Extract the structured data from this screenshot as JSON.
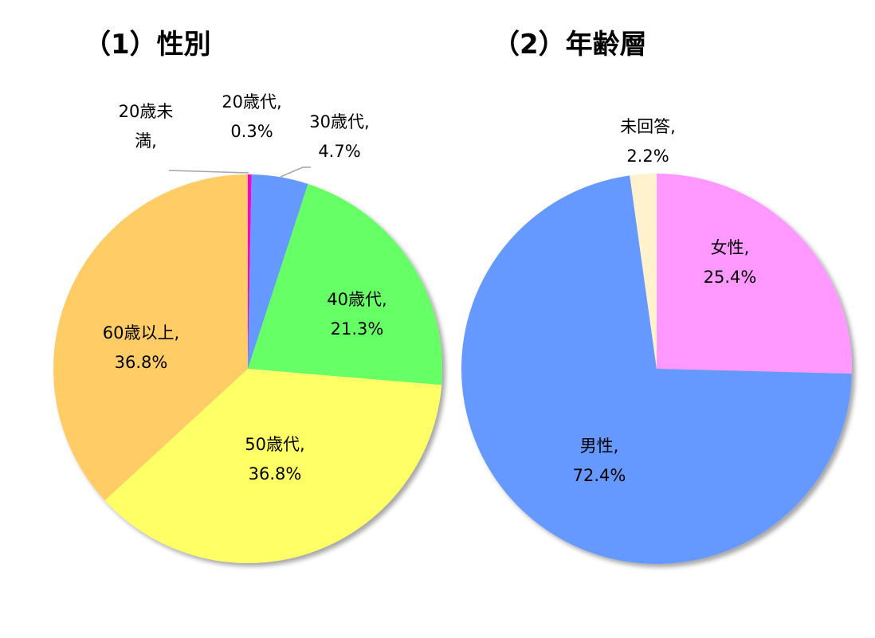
{
  "chart_data": [
    {
      "type": "pie",
      "title": "（1）性別",
      "slices": [
        {
          "name": "20歳未満",
          "value": 0.0,
          "color": "#BDBDBD",
          "label": [
            "20歳未",
            "満,"
          ]
        },
        {
          "name": "20歳代",
          "value": 0.3,
          "color": "#FF00CC",
          "label": [
            "20歳代,",
            "0.3%"
          ]
        },
        {
          "name": "30歳代",
          "value": 4.7,
          "color": "#6699FF",
          "label": [
            "30歳代,",
            "4.7%"
          ]
        },
        {
          "name": "40歳代",
          "value": 21.3,
          "color": "#66FF66",
          "label": [
            "40歳代,",
            "21.3%"
          ]
        },
        {
          "name": "50歳代",
          "value": 36.8,
          "color": "#FFFF66",
          "label": [
            "50歳代,",
            "36.8%"
          ]
        },
        {
          "name": "60歳以上",
          "value": 36.8,
          "color": "#FFCC66",
          "label": [
            "60歳以上,",
            "36.8%"
          ]
        }
      ]
    },
    {
      "type": "pie",
      "title": "（2）年齢層",
      "slices": [
        {
          "name": "女性",
          "value": 25.4,
          "color": "#FF99FF",
          "label": [
            "女性,",
            "25.4%"
          ]
        },
        {
          "name": "男性",
          "value": 72.4,
          "color": "#6699FF",
          "label": [
            "男性,",
            "72.4%"
          ]
        },
        {
          "name": "未回答",
          "value": 2.2,
          "color": "#FFF2CC",
          "label": [
            "未回答,",
            "2.2%"
          ]
        }
      ]
    }
  ]
}
